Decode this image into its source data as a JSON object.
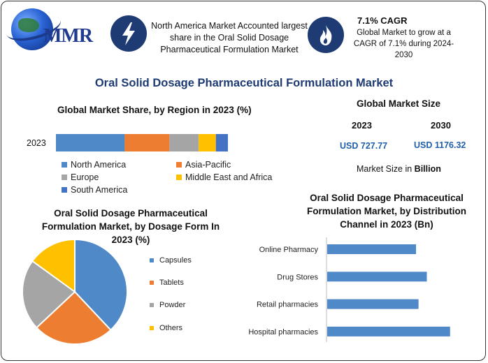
{
  "brand": {
    "logo_text": "MMR"
  },
  "header": {
    "box1_text": "North America Market Accounted largest share in the Oral Solid Dosage Pharmaceutical Formulation Market",
    "box2_title": "7.1% CAGR",
    "box2_text": "Global Market to grow at a CAGR of 7.1% during 2024-2030",
    "icon1": "lightning-icon",
    "icon2": "flame-icon"
  },
  "main_title": "Oral Solid Dosage Pharmaceutical Formulation Market",
  "market_size": {
    "title": "Global Market Size",
    "year_a": "2023",
    "year_b": "2030",
    "value_a": "USD 727.77",
    "value_b": "USD 1176.32",
    "note_prefix": "Market Size in ",
    "note_bold": "Billion"
  },
  "colors": {
    "blue": "#4f89c7",
    "orange": "#ed7d31",
    "gray": "#a5a5a5",
    "yellow": "#ffc000",
    "darkblue": "#4472c4",
    "navy": "#1f3b74"
  },
  "chart_data": [
    {
      "type": "bar",
      "orientation": "horizontal-stacked",
      "title": "Global Market Share, by Region in 2023 (%)",
      "categories": [
        "2023"
      ],
      "series": [
        {
          "name": "North America",
          "values": [
            40
          ],
          "color": "#4f89c7"
        },
        {
          "name": "Asia-Pacific",
          "values": [
            26
          ],
          "color": "#ed7d31"
        },
        {
          "name": "Europe",
          "values": [
            17
          ],
          "color": "#a5a5a5"
        },
        {
          "name": "Middle East and Africa",
          "values": [
            10
          ],
          "color": "#ffc000"
        },
        {
          "name": "South America",
          "values": [
            7
          ],
          "color": "#4472c4"
        }
      ],
      "legend": "bottom"
    },
    {
      "type": "pie",
      "title": "Oral Solid Dosage Pharmaceutical Formulation Market, by Dosage Form In 2023 (%)",
      "labels": [
        "Capsules",
        "Tablets",
        "Powder",
        "Others"
      ],
      "values": [
        38,
        25,
        22,
        15
      ],
      "colors": [
        "#4f89c7",
        "#ed7d31",
        "#a5a5a5",
        "#ffc000"
      ],
      "legend": "right"
    },
    {
      "type": "bar",
      "orientation": "horizontal",
      "title": "Oral Solid Dosage Pharmaceutical Formulation Market, by Distribution Channel in 2023 (Bn)",
      "categories": [
        "Online Pharmacy",
        "Drug Stores",
        "Retail pharmacies",
        "Hospital pharmacies"
      ],
      "values": [
        107,
        120,
        110,
        148
      ],
      "xlim": [
        0,
        160
      ],
      "color": "#4f89c7"
    }
  ]
}
